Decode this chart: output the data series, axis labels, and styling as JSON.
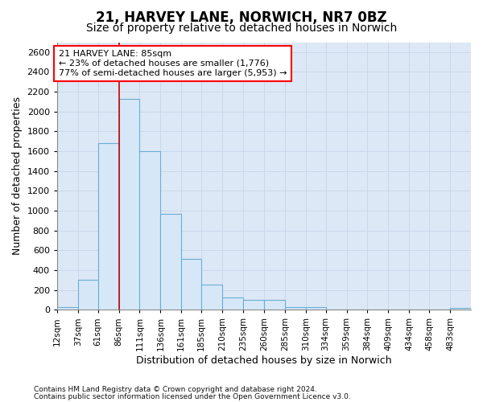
{
  "title1": "21, HARVEY LANE, NORWICH, NR7 0BZ",
  "title2": "Size of property relative to detached houses in Norwich",
  "xlabel": "Distribution of detached houses by size in Norwich",
  "ylabel": "Number of detached properties",
  "footnote1": "Contains HM Land Registry data © Crown copyright and database right 2024.",
  "footnote2": "Contains public sector information licensed under the Open Government Licence v3.0.",
  "bins": [
    12,
    37,
    61,
    86,
    111,
    136,
    161,
    185,
    210,
    235,
    260,
    285,
    310,
    334,
    359,
    384,
    409,
    434,
    458,
    483,
    508
  ],
  "counts": [
    25,
    300,
    1680,
    2130,
    1600,
    970,
    510,
    255,
    125,
    100,
    100,
    30,
    30,
    0,
    0,
    0,
    0,
    0,
    0,
    20
  ],
  "bar_color": "#d6e8f7",
  "bar_edge_color": "#6aaed6",
  "vline_x": 86,
  "vline_color": "#cc0000",
  "annotation_line1": "21 HARVEY LANE: 85sqm",
  "annotation_line2": "← 23% of detached houses are smaller (1,776)",
  "annotation_line3": "77% of semi-detached houses are larger (5,953) →",
  "ylim": [
    0,
    2700
  ],
  "yticks": [
    0,
    200,
    400,
    600,
    800,
    1000,
    1200,
    1400,
    1600,
    1800,
    2000,
    2200,
    2400,
    2600
  ],
  "grid_color": "#c8d8ec",
  "bg_color": "#dce8f5",
  "title1_fontsize": 12,
  "title2_fontsize": 10,
  "xlabel_fontsize": 9,
  "ylabel_fontsize": 9,
  "ytick_fontsize": 8,
  "xtick_fontsize": 7.5
}
